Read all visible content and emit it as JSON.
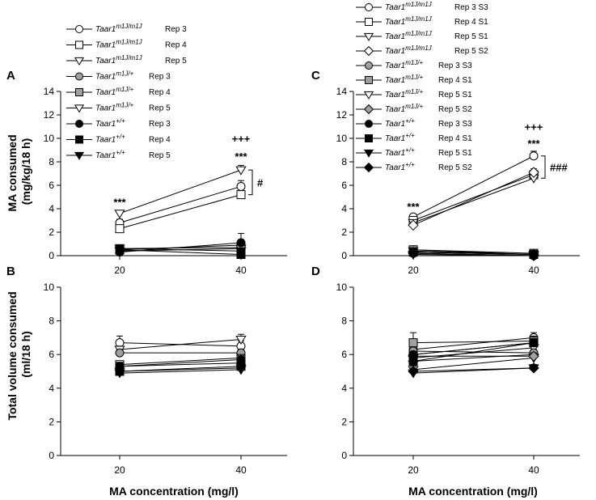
{
  "figure": {
    "y_axis_top": "MA consumed\n(mg/kg/18 h)",
    "y_axis_bottom": "Total volume consumed\n(ml/18 h)",
    "x_axis": "MA concentration (mg/l)"
  },
  "chart_data": [
    {
      "panel": "A",
      "type": "line",
      "x": [
        20,
        40
      ],
      "xticks": [
        "20",
        "40"
      ],
      "ylim": [
        0,
        14
      ],
      "yticks": [
        0,
        2,
        4,
        6,
        8,
        10,
        12,
        14
      ],
      "ylabel": "MA consumed (mg/kg/18 h)",
      "xlabel": "MA concentration (mg/l)",
      "series": [
        {
          "genotype": "Taar1",
          "sup": "m1J/m1J",
          "label": "Rep 3",
          "marker": "circle",
          "fill": "#ffffff",
          "values": [
            2.8,
            5.9
          ],
          "err": [
            0.3,
            0.5
          ]
        },
        {
          "genotype": "Taar1",
          "sup": "m1J/m1J",
          "label": "Rep 4",
          "marker": "square",
          "fill": "#ffffff",
          "values": [
            2.3,
            5.2
          ],
          "err": [
            0.2,
            0.3
          ]
        },
        {
          "genotype": "Taar1",
          "sup": "m1J/m1J",
          "label": "Rep 5",
          "marker": "triangle-down",
          "fill": "#ffffff",
          "values": [
            3.6,
            7.3
          ],
          "err": [
            0.2,
            0.4
          ]
        },
        {
          "genotype": "Taar1",
          "sup": "m1J/+",
          "label": "Rep 3",
          "marker": "circle",
          "fill": "#a0a0a0",
          "values": [
            0.5,
            0.9
          ],
          "err": [
            0.1,
            0.3
          ]
        },
        {
          "genotype": "Taar1",
          "sup": "m1J/+",
          "label": "Rep 4",
          "marker": "square",
          "fill": "#a0a0a0",
          "values": [
            0.6,
            0.7
          ],
          "err": [
            0.1,
            0.2
          ]
        },
        {
          "genotype": "Taar1",
          "sup": "m1J/+",
          "label": "Rep 5",
          "marker": "triangle-down",
          "fill": "#ffffff",
          "values": [
            0.4,
            0.6
          ],
          "err": [
            0.1,
            0.3
          ]
        },
        {
          "genotype": "Taar1",
          "sup": "+/+",
          "label": "Rep 3",
          "marker": "circle",
          "fill": "#000000",
          "values": [
            0.3,
            1.1
          ],
          "err": [
            0.1,
            0.8
          ]
        },
        {
          "genotype": "Taar1",
          "sup": "+/+",
          "label": "Rep 4",
          "marker": "square",
          "fill": "#000000",
          "values": [
            0.5,
            0.1
          ],
          "err": [
            0.1,
            0.1
          ]
        },
        {
          "genotype": "Taar1",
          "sup": "+/+",
          "label": "Rep 5",
          "marker": "triangle-down",
          "fill": "#000000",
          "values": [
            0.6,
            0.4
          ],
          "err": [
            0.1,
            0.2
          ]
        }
      ],
      "annotations": [
        {
          "text": "***",
          "x": 20,
          "y": 4.6
        },
        {
          "text": "***",
          "x": 40,
          "y": 8.5
        },
        {
          "text": "+++",
          "x": 40,
          "y": 10.0
        },
        {
          "text": "#",
          "bracket": [
            5.2,
            7.3
          ],
          "x": 40
        }
      ]
    },
    {
      "panel": "C",
      "type": "line",
      "x": [
        20,
        40
      ],
      "xticks": [
        "20",
        "40"
      ],
      "ylim": [
        0,
        14
      ],
      "yticks": [
        0,
        2,
        4,
        6,
        8,
        10,
        12,
        14
      ],
      "ylabel": "MA consumed (mg/kg/18 h)",
      "xlabel": "MA concentration (mg/l)",
      "series": [
        {
          "genotype": "Taar1",
          "sup": "m1J/m1J",
          "label": "Rep 3 S3",
          "marker": "circle",
          "fill": "#ffffff",
          "values": [
            3.3,
            8.5
          ],
          "err": [
            0.2,
            0.4
          ]
        },
        {
          "genotype": "Taar1",
          "sup": "m1J/m1J",
          "label": "Rep 4 S1",
          "marker": "square",
          "fill": "#ffffff",
          "values": [
            3.0,
            6.9
          ],
          "err": [
            0.2,
            0.3
          ]
        },
        {
          "genotype": "Taar1",
          "sup": "m1J/m1J",
          "label": "Rep 5 S1",
          "marker": "triangle-down",
          "fill": "#ffffff",
          "values": [
            2.8,
            6.6
          ],
          "err": [
            0.2,
            0.3
          ]
        },
        {
          "genotype": "Taar1",
          "sup": "m1J/m1J",
          "label": "Rep 5 S2",
          "marker": "diamond",
          "fill": "#ffffff",
          "values": [
            2.6,
            7.1
          ],
          "err": [
            0.2,
            0.3
          ]
        },
        {
          "genotype": "Taar1",
          "sup": "m1J/+",
          "label": "Rep 3 S3",
          "marker": "circle",
          "fill": "#a0a0a0",
          "values": [
            0.5,
            0.1
          ],
          "err": [
            0.1,
            0.1
          ]
        },
        {
          "genotype": "Taar1",
          "sup": "m1J/+",
          "label": "Rep 4 S1",
          "marker": "square",
          "fill": "#a0a0a0",
          "values": [
            0.5,
            0.2
          ],
          "err": [
            0.1,
            0.1
          ]
        },
        {
          "genotype": "Taar1",
          "sup": "m1J/+",
          "label": "Rep 5 S1",
          "marker": "triangle-down",
          "fill": "#ffffff",
          "values": [
            0.4,
            0.1
          ],
          "err": [
            0.1,
            0.1
          ]
        },
        {
          "genotype": "Taar1",
          "sup": "m1J/+",
          "label": "Rep 5 S2",
          "marker": "diamond",
          "fill": "#a0a0a0",
          "values": [
            0.3,
            0.1
          ],
          "err": [
            0.1,
            0.1
          ]
        },
        {
          "genotype": "Taar1",
          "sup": "+/+",
          "label": "Rep 3 S3",
          "marker": "circle",
          "fill": "#000000",
          "values": [
            0.2,
            0.0
          ],
          "err": [
            0.1,
            0.1
          ]
        },
        {
          "genotype": "Taar1",
          "sup": "+/+",
          "label": "Rep 4 S1",
          "marker": "square",
          "fill": "#000000",
          "values": [
            0.3,
            0.1
          ],
          "err": [
            0.1,
            0.1
          ]
        },
        {
          "genotype": "Taar1",
          "sup": "+/+",
          "label": "Rep 5 S1",
          "marker": "triangle-down",
          "fill": "#000000",
          "values": [
            0.1,
            0.0
          ],
          "err": [
            0.1,
            0.1
          ]
        },
        {
          "genotype": "Taar1",
          "sup": "+/+",
          "label": "Rep 5 S2",
          "marker": "diamond",
          "fill": "#000000",
          "values": [
            0.2,
            0.0
          ],
          "err": [
            0.1,
            0.1
          ]
        }
      ],
      "annotations": [
        {
          "text": "***",
          "x": 20,
          "y": 4.2
        },
        {
          "text": "***",
          "x": 40,
          "y": 9.6
        },
        {
          "text": "+++",
          "x": 40,
          "y": 11.0
        },
        {
          "text": "###",
          "bracket": [
            6.6,
            8.5
          ],
          "x": 40
        }
      ]
    },
    {
      "panel": "B",
      "type": "line",
      "x": [
        20,
        40
      ],
      "xticks": [
        "20",
        "40"
      ],
      "ylim": [
        0,
        10
      ],
      "yticks": [
        0,
        2,
        4,
        6,
        8,
        10
      ],
      "ylabel": "Total volume consumed (ml/18 h)",
      "xlabel": "MA concentration (mg/l)",
      "series": [
        {
          "marker": "circle",
          "fill": "#ffffff",
          "values": [
            6.7,
            6.5
          ],
          "err": [
            0.4,
            0.3
          ]
        },
        {
          "marker": "square",
          "fill": "#ffffff",
          "values": [
            5.4,
            5.8
          ],
          "err": [
            0.2,
            0.2
          ]
        },
        {
          "marker": "triangle-down",
          "fill": "#ffffff",
          "values": [
            6.3,
            6.9
          ],
          "err": [
            0.2,
            0.3
          ]
        },
        {
          "marker": "circle",
          "fill": "#a0a0a0",
          "values": [
            6.1,
            6.1
          ],
          "err": [
            0.2,
            0.2
          ]
        },
        {
          "marker": "square",
          "fill": "#a0a0a0",
          "values": [
            5.3,
            5.5
          ],
          "err": [
            0.2,
            0.2
          ]
        },
        {
          "marker": "triangle-down",
          "fill": "#ffffff",
          "values": [
            5.0,
            5.2
          ],
          "err": [
            0.2,
            0.2
          ]
        },
        {
          "marker": "circle",
          "fill": "#000000",
          "values": [
            5.3,
            5.7
          ],
          "err": [
            0.2,
            0.3
          ]
        },
        {
          "marker": "square",
          "fill": "#000000",
          "values": [
            5.0,
            5.3
          ],
          "err": [
            0.2,
            0.2
          ]
        },
        {
          "marker": "triangle-down",
          "fill": "#000000",
          "values": [
            4.9,
            5.1
          ],
          "err": [
            0.2,
            0.2
          ]
        }
      ]
    },
    {
      "panel": "D",
      "type": "line",
      "x": [
        20,
        40
      ],
      "xticks": [
        "20",
        "40"
      ],
      "ylim": [
        0,
        10
      ],
      "yticks": [
        0,
        2,
        4,
        6,
        8,
        10
      ],
      "ylabel": "Total volume consumed (ml/18 h)",
      "xlabel": "MA concentration (mg/l)",
      "series": [
        {
          "marker": "circle",
          "fill": "#ffffff",
          "values": [
            6.3,
            7.0
          ],
          "err": [
            0.3,
            0.3
          ]
        },
        {
          "marker": "square",
          "fill": "#ffffff",
          "values": [
            6.0,
            6.7
          ],
          "err": [
            0.2,
            0.2
          ]
        },
        {
          "marker": "triangle-down",
          "fill": "#ffffff",
          "values": [
            5.8,
            6.4
          ],
          "err": [
            0.2,
            0.2
          ]
        },
        {
          "marker": "diamond",
          "fill": "#ffffff",
          "values": [
            5.6,
            6.0
          ],
          "err": [
            0.2,
            0.2
          ]
        },
        {
          "marker": "circle",
          "fill": "#a0a0a0",
          "values": [
            6.2,
            6.1
          ],
          "err": [
            0.3,
            0.2
          ]
        },
        {
          "marker": "square",
          "fill": "#a0a0a0",
          "values": [
            6.7,
            6.8
          ],
          "err": [
            0.6,
            0.3
          ]
        },
        {
          "marker": "triangle-down",
          "fill": "#ffffff",
          "values": [
            5.1,
            5.8
          ],
          "err": [
            0.2,
            0.2
          ]
        },
        {
          "marker": "diamond",
          "fill": "#a0a0a0",
          "values": [
            5.9,
            5.9
          ],
          "err": [
            0.2,
            0.2
          ]
        },
        {
          "marker": "circle",
          "fill": "#000000",
          "values": [
            6.0,
            6.7
          ],
          "err": [
            0.2,
            0.2
          ]
        },
        {
          "marker": "square",
          "fill": "#000000",
          "values": [
            5.6,
            6.7
          ],
          "err": [
            0.2,
            0.2
          ]
        },
        {
          "marker": "triangle-down",
          "fill": "#000000",
          "values": [
            4.9,
            5.2
          ],
          "err": [
            0.2,
            0.2
          ]
        },
        {
          "marker": "diamond",
          "fill": "#000000",
          "values": [
            5.0,
            5.2
          ],
          "err": [
            0.2,
            0.2
          ]
        }
      ]
    }
  ]
}
